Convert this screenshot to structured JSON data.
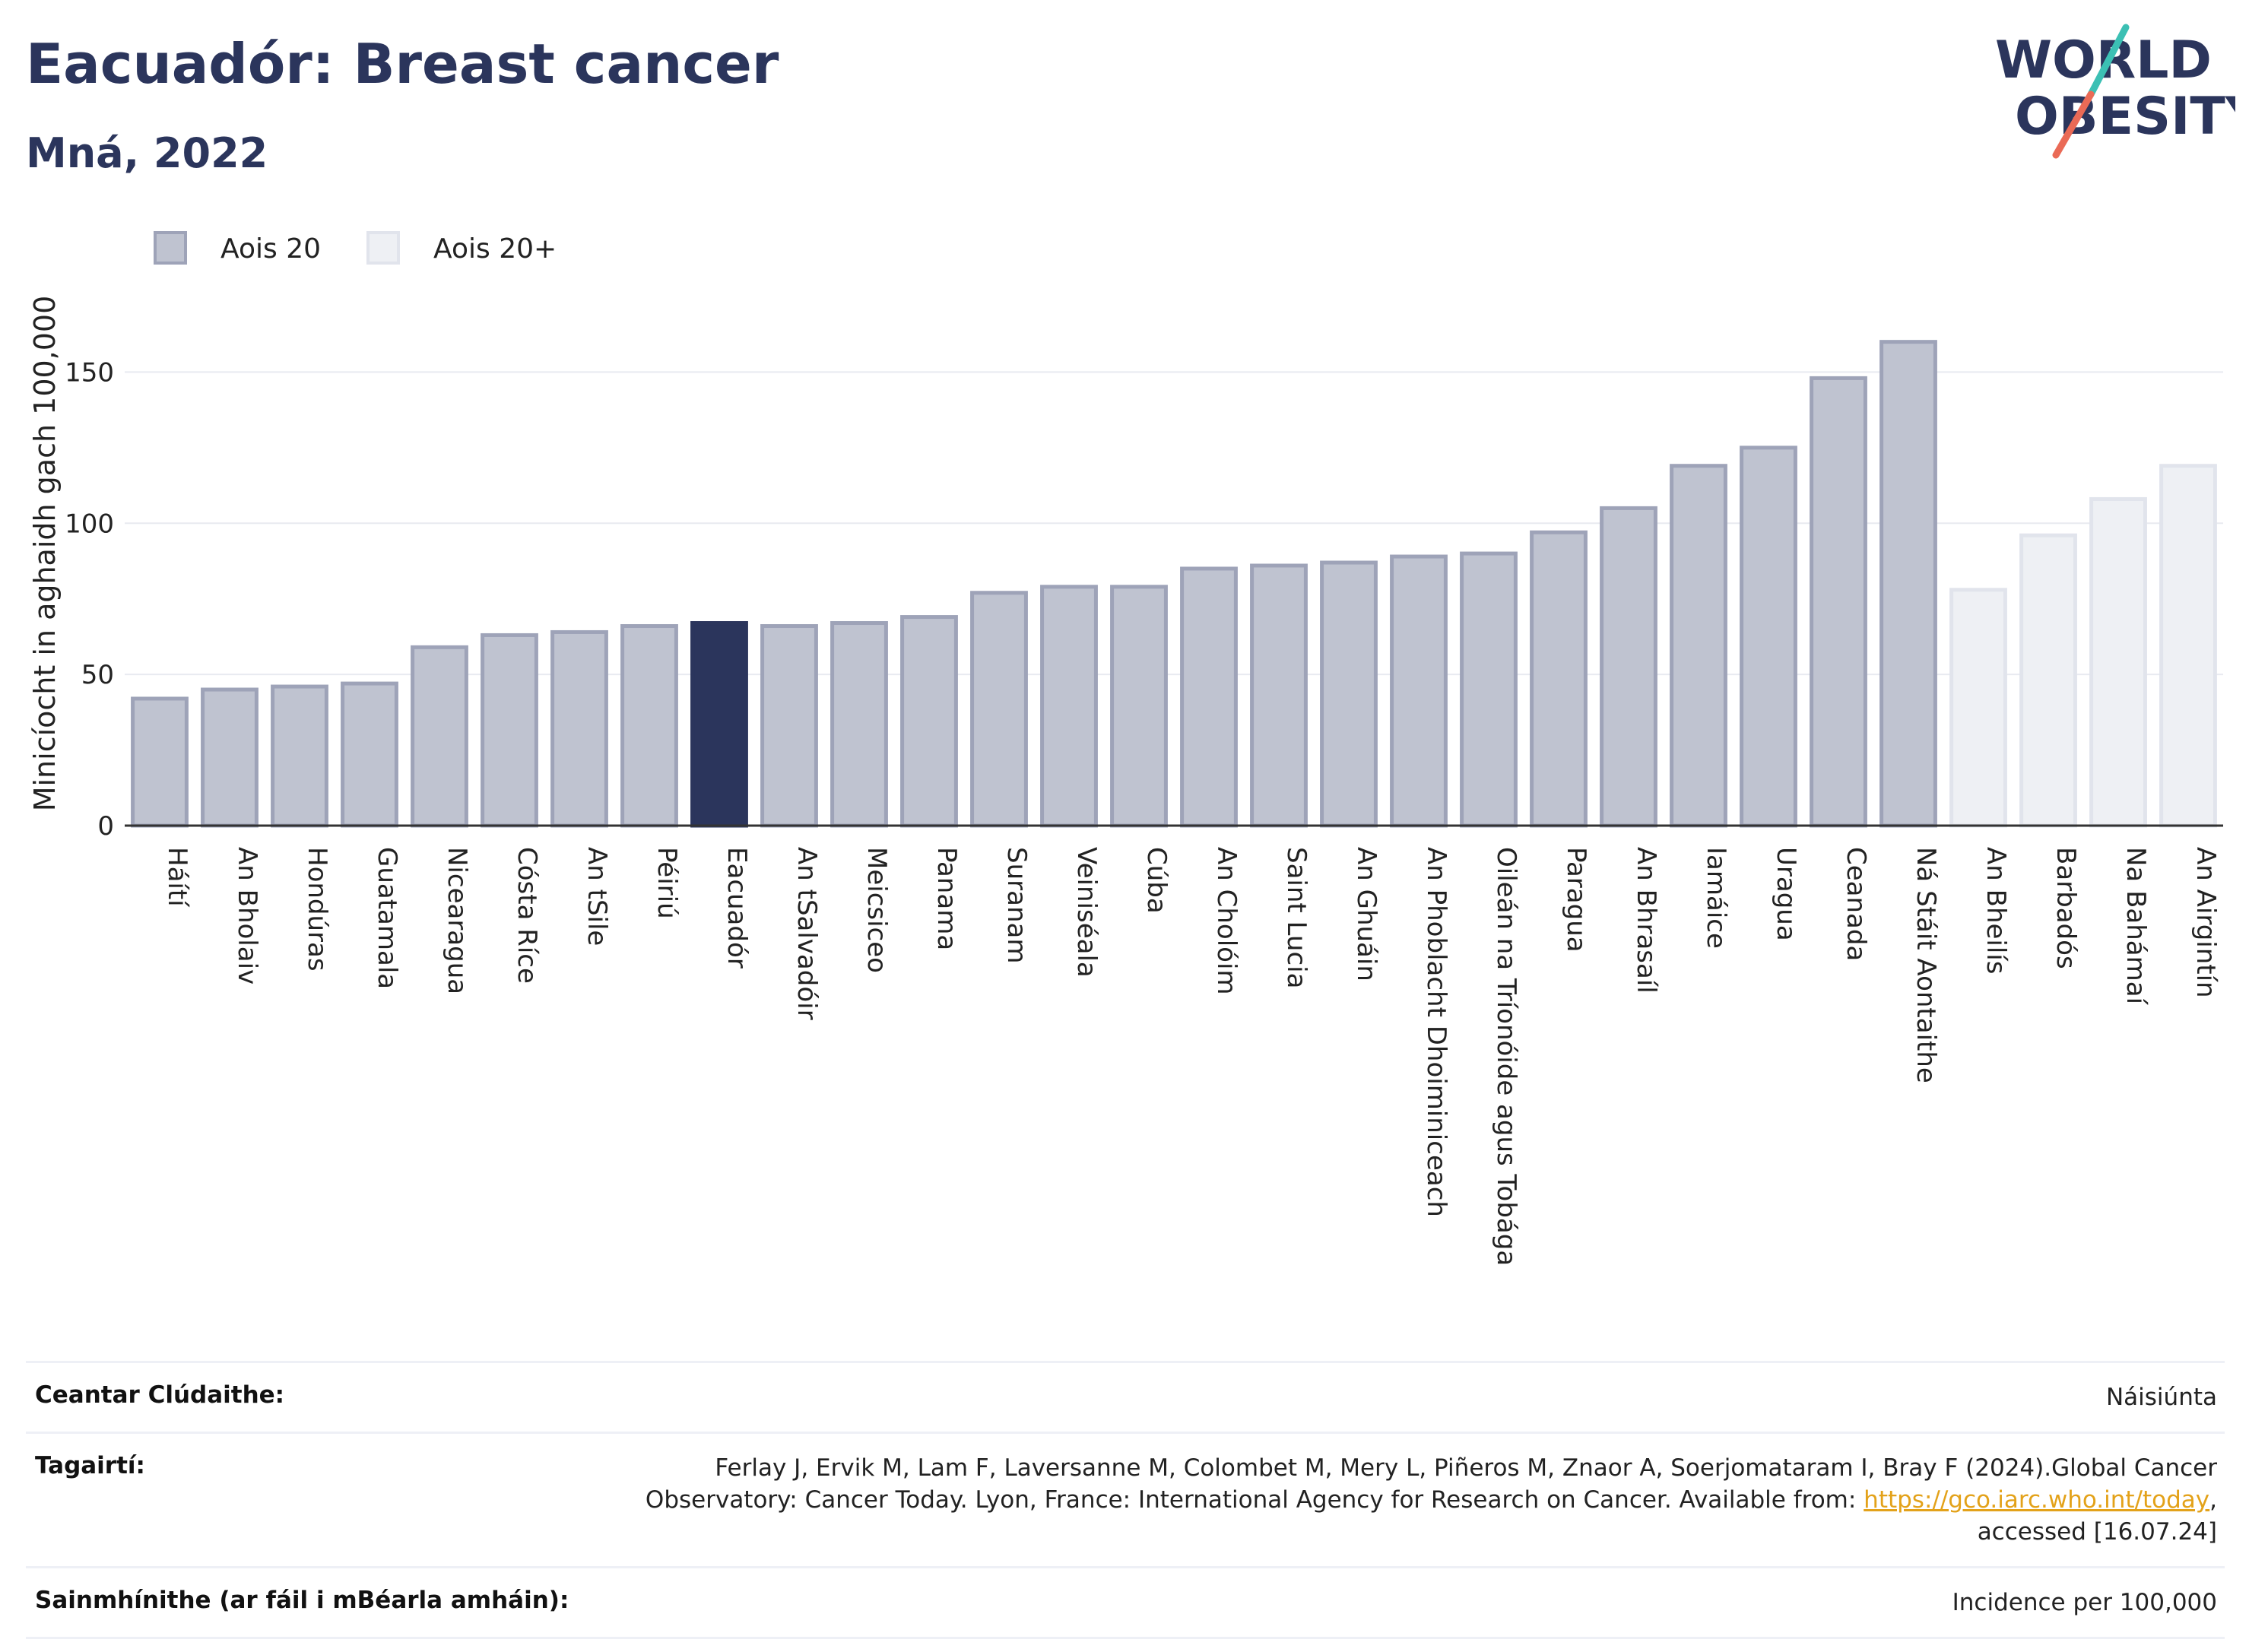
{
  "header": {
    "title": "Eacuadór: Breast cancer",
    "subtitle": "Mná, 2022"
  },
  "logo": {
    "line1": "WORLD",
    "line2": "OBESITY"
  },
  "chart_data": {
    "type": "bar",
    "ylabel": "Minicíocht in aghaidh gach 100,000",
    "xlabel": "",
    "ylim": [
      0,
      175
    ],
    "yticks": [
      0,
      50,
      100,
      150
    ],
    "grid": true,
    "legend_placement": "top-left",
    "legend": [
      {
        "label": "Aois 20",
        "color": "#bfc3d0"
      },
      {
        "label": "Aois 20+",
        "color": "#eef0f4"
      }
    ],
    "highlight": "Eacuadór",
    "colors": {
      "default": "#bfc3d0",
      "default_border": "#9ea3b8",
      "highlight": "#2b355c",
      "light": "#eef0f4",
      "light_border": "#e1e4ec"
    },
    "categories": [
      "Háítí",
      "An Bholaiv",
      "Hondúras",
      "Guatamala",
      "Nicearagua",
      "Cósta Ríce",
      "An tSile",
      "Péiriú",
      "Eacuadór",
      "An tSalvadóir",
      "Meicsiceo",
      "Panama",
      "Suranam",
      "Veiniséala",
      "Cúba",
      "An Cholóim",
      "Saint Lucia",
      "An Ghuáin",
      "An Phoblacht Dhoiminiceach",
      "Oileán na Tríonóide agus Tobága",
      "Paragua",
      "An Bhrasaíl",
      "Iamáice",
      "Uragua",
      "Ceanada",
      "Ná Stáit Aontaithe",
      "An Bheilís",
      "Barbadós",
      "Na Bahámaí",
      "An Airgintín"
    ],
    "values": [
      42,
      45,
      46,
      47,
      59,
      63,
      64,
      66,
      67,
      66,
      67,
      69,
      77,
      79,
      79,
      85,
      86,
      87,
      89,
      90,
      97,
      105,
      119,
      125,
      148,
      160,
      78,
      96,
      108,
      119
    ],
    "groups": [
      "Aois 20",
      "Aois 20",
      "Aois 20",
      "Aois 20",
      "Aois 20",
      "Aois 20",
      "Aois 20",
      "Aois 20",
      "Aois 20",
      "Aois 20",
      "Aois 20",
      "Aois 20",
      "Aois 20",
      "Aois 20",
      "Aois 20",
      "Aois 20",
      "Aois 20",
      "Aois 20",
      "Aois 20",
      "Aois 20",
      "Aois 20",
      "Aois 20",
      "Aois 20",
      "Aois 20",
      "Aois 20",
      "Aois 20",
      "Aois 20+",
      "Aois 20+",
      "Aois 20+",
      "Aois 20+"
    ]
  },
  "meta": {
    "coverage_label": "Ceantar Clúdaithe:",
    "coverage_value": "Náisiúnta",
    "references_label": "Tagairtí:",
    "references_text_1": "Ferlay J, Ervik M, Lam F, Laversanne M, Colombet M, Mery L, Piñeros M, Znaor A, Soerjomataram I, Bray F (2024).Global Cancer Observatory: Cancer Today. Lyon, France: International Agency for Research on Cancer. Available from: ",
    "references_link": "https://gco.iarc.who.int/today",
    "references_text_2": ", accessed [16.07.24]",
    "definitions_label": "Sainmhínithe (ar fáil i mBéarla amháin):",
    "definitions_value": "Incidence per 100,000"
  }
}
